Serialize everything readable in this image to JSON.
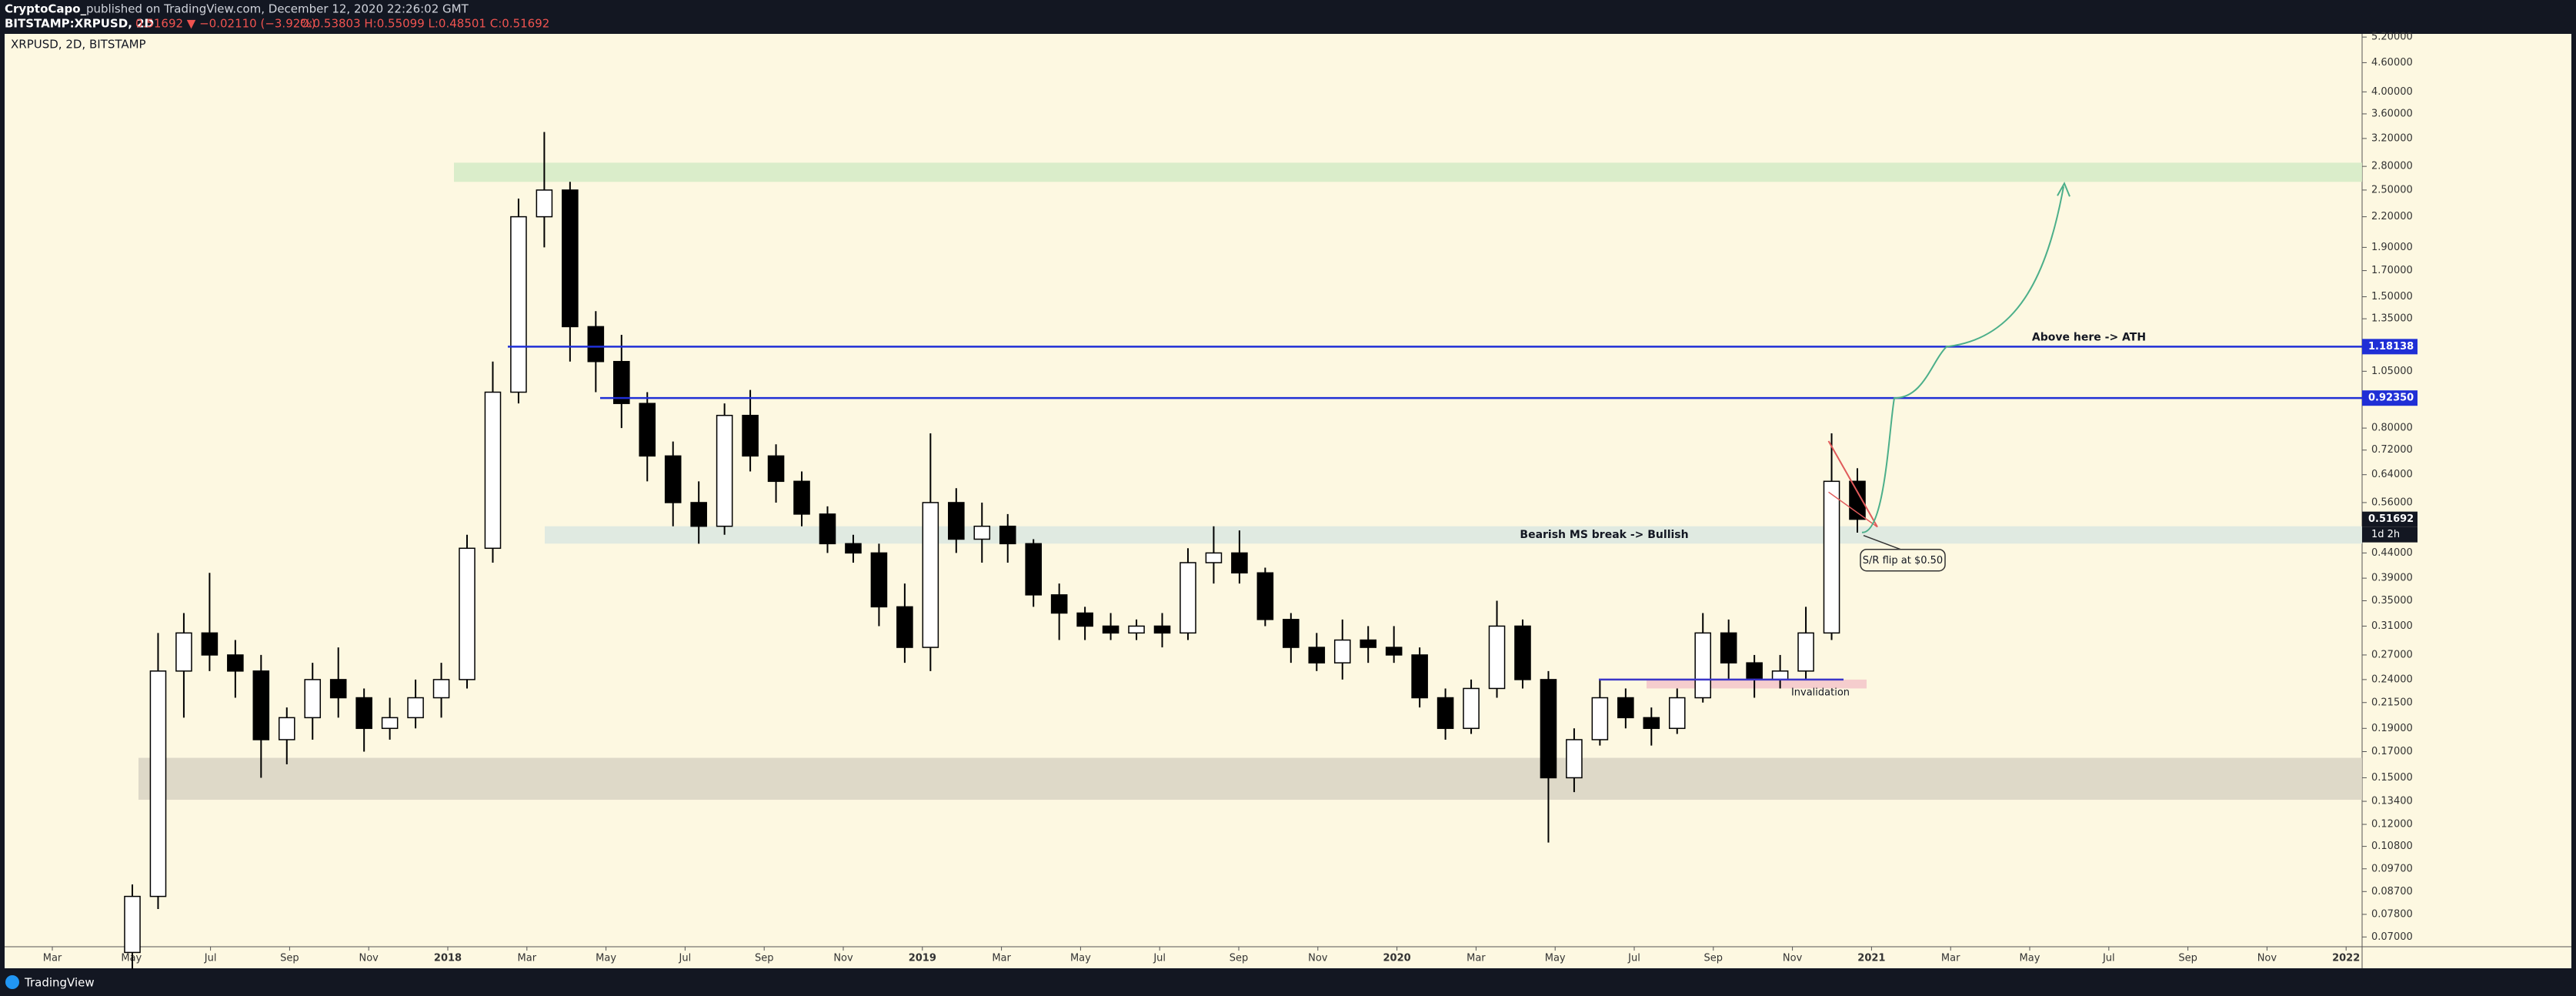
{
  "header": {
    "author": "CryptoCapo_",
    "published": "published on TradingView.com, December 12, 2020 22:26:02 GMT",
    "symbol": "BITSTAMP:XRPUSD, 2D",
    "quote": "0.51692 ▼ −0.02110 (−3.92%)",
    "ohlc": "O:0.53803 H:0.55099 L:0.48501 C:0.51692"
  },
  "footer": {
    "brand": "TradingView"
  },
  "chart_data": {
    "type": "candlestick",
    "title": "XRPUSD, 2D, BITSTAMP",
    "log_scale": true,
    "ylim": [
      0.0668,
      5.28
    ],
    "yticks": [
      {
        "value": 5.2,
        "label": "5.20000"
      },
      {
        "value": 4.6,
        "label": "4.60000"
      },
      {
        "value": 4,
        "label": "4.00000"
      },
      {
        "value": 3.6,
        "label": "3.60000"
      },
      {
        "value": 3.2,
        "label": "3.20000"
      },
      {
        "value": 2.8,
        "label": "2.80000"
      },
      {
        "value": 2.5,
        "label": "2.50000"
      },
      {
        "value": 2.2,
        "label": "2.20000"
      },
      {
        "value": 1.9,
        "label": "1.90000"
      },
      {
        "value": 1.7,
        "label": "1.70000"
      },
      {
        "value": 1.5,
        "label": "1.50000"
      },
      {
        "value": 1.35,
        "label": "1.35000"
      },
      {
        "value": 1.05,
        "label": "1.05000"
      },
      {
        "value": 0.8,
        "label": "0.80000"
      },
      {
        "value": 0.72,
        "label": "0.72000"
      },
      {
        "value": 0.64,
        "label": "0.64000"
      },
      {
        "value": 0.56,
        "label": "0.56000"
      },
      {
        "value": 0.44,
        "label": "0.44000"
      },
      {
        "value": 0.39,
        "label": "0.39000"
      },
      {
        "value": 0.35,
        "label": "0.35000"
      },
      {
        "value": 0.31,
        "label": "0.31000"
      },
      {
        "value": 0.27,
        "label": "0.27000"
      },
      {
        "value": 0.24,
        "label": "0.24000"
      },
      {
        "value": 0.215,
        "label": "0.21500"
      },
      {
        "value": 0.19,
        "label": "0.19000"
      },
      {
        "value": 0.17,
        "label": "0.17000"
      },
      {
        "value": 0.15,
        "label": "0.15000"
      },
      {
        "value": 0.134,
        "label": "0.13400"
      },
      {
        "value": 0.12,
        "label": "0.12000"
      },
      {
        "value": 0.108,
        "label": "0.10800"
      },
      {
        "value": 0.097,
        "label": "0.09700"
      },
      {
        "value": 0.087,
        "label": "0.08700"
      },
      {
        "value": 0.078,
        "label": "0.07800"
      },
      {
        "value": 0.07,
        "label": "0.07000"
      }
    ],
    "xticks": [
      "Mar",
      "May",
      "Jul",
      "Sep",
      "Nov",
      "2018",
      "Mar",
      "May",
      "Jul",
      "Sep",
      "Nov",
      "2019",
      "Mar",
      "May",
      "Jul",
      "Sep",
      "Nov",
      "2020",
      "Mar",
      "May",
      "Jul",
      "Sep",
      "Nov",
      "2021",
      "Mar",
      "May",
      "Jul",
      "Sep",
      "Nov",
      "2022"
    ],
    "open": [
      0.065,
      0.085,
      0.25,
      0.3,
      0.27,
      0.25,
      0.18,
      0.2,
      0.24,
      0.22,
      0.19,
      0.2,
      0.22,
      0.24,
      0.45,
      0.95,
      2.2,
      2.5,
      1.3,
      1.1,
      0.9,
      0.7,
      0.56,
      0.5,
      0.85,
      0.7,
      0.62,
      0.53,
      0.46,
      0.44,
      0.34,
      0.28,
      0.56,
      0.47,
      0.5,
      0.46,
      0.36,
      0.33,
      0.31,
      0.3,
      0.31,
      0.3,
      0.42,
      0.44,
      0.4,
      0.32,
      0.28,
      0.26,
      0.29,
      0.28,
      0.27,
      0.22,
      0.19,
      0.23,
      0.31,
      0.24,
      0.15,
      0.18,
      0.22,
      0.2,
      0.19,
      0.22,
      0.3,
      0.26,
      0.24,
      0.25,
      0.3,
      0.62
    ],
    "high": [
      0.09,
      0.3,
      0.33,
      0.4,
      0.29,
      0.27,
      0.21,
      0.26,
      0.28,
      0.23,
      0.22,
      0.24,
      0.26,
      0.48,
      1.1,
      2.4,
      3.3,
      2.6,
      1.4,
      1.25,
      0.95,
      0.75,
      0.62,
      0.9,
      0.96,
      0.74,
      0.65,
      0.55,
      0.48,
      0.46,
      0.38,
      0.78,
      0.6,
      0.56,
      0.53,
      0.47,
      0.38,
      0.34,
      0.33,
      0.32,
      0.33,
      0.45,
      0.5,
      0.49,
      0.41,
      0.33,
      0.3,
      0.32,
      0.31,
      0.31,
      0.28,
      0.23,
      0.24,
      0.35,
      0.32,
      0.25,
      0.19,
      0.24,
      0.23,
      0.21,
      0.23,
      0.33,
      0.32,
      0.27,
      0.27,
      0.34,
      0.78,
      0.66
    ],
    "low": [
      0.06,
      0.08,
      0.2,
      0.25,
      0.22,
      0.15,
      0.16,
      0.18,
      0.2,
      0.17,
      0.18,
      0.19,
      0.2,
      0.23,
      0.42,
      0.9,
      1.9,
      1.1,
      0.95,
      0.8,
      0.62,
      0.5,
      0.46,
      0.48,
      0.65,
      0.56,
      0.5,
      0.44,
      0.42,
      0.31,
      0.26,
      0.25,
      0.44,
      0.42,
      0.42,
      0.34,
      0.29,
      0.29,
      0.29,
      0.29,
      0.28,
      0.29,
      0.38,
      0.38,
      0.31,
      0.26,
      0.25,
      0.24,
      0.26,
      0.26,
      0.21,
      0.18,
      0.185,
      0.22,
      0.23,
      0.11,
      0.14,
      0.175,
      0.19,
      0.175,
      0.185,
      0.215,
      0.24,
      0.22,
      0.23,
      0.24,
      0.29,
      0.485
    ],
    "close": [
      0.085,
      0.25,
      0.3,
      0.27,
      0.25,
      0.18,
      0.2,
      0.24,
      0.22,
      0.19,
      0.2,
      0.22,
      0.24,
      0.45,
      0.95,
      2.2,
      2.5,
      1.3,
      1.1,
      0.9,
      0.7,
      0.56,
      0.5,
      0.85,
      0.7,
      0.62,
      0.53,
      0.46,
      0.44,
      0.34,
      0.28,
      0.56,
      0.47,
      0.5,
      0.46,
      0.36,
      0.33,
      0.31,
      0.3,
      0.31,
      0.3,
      0.42,
      0.44,
      0.4,
      0.32,
      0.28,
      0.26,
      0.29,
      0.28,
      0.27,
      0.22,
      0.19,
      0.23,
      0.31,
      0.24,
      0.15,
      0.18,
      0.22,
      0.2,
      0.19,
      0.22,
      0.3,
      0.26,
      0.24,
      0.25,
      0.3,
      0.62,
      0.517
    ],
    "zones": [
      {
        "from": 2.6,
        "to": 2.85,
        "color": "#d4ebc6"
      },
      {
        "from": 0.46,
        "to": 0.5,
        "color": "#dbe8e0",
        "label": "Bearish MS break -> Bullish"
      },
      {
        "from": 0.135,
        "to": 0.165,
        "color": "#d8d3c3"
      },
      {
        "from": 0.23,
        "to": 0.24,
        "color": "#f3c6c9"
      }
    ],
    "price_lines": [
      {
        "value": 1.18138,
        "label": "1.18138",
        "color": "#1f2fd6",
        "note": "Above here -> ATH"
      },
      {
        "value": 0.9235,
        "label": "0.92350",
        "color": "#1f2fd6"
      }
    ],
    "support_line": {
      "value": 0.24,
      "color": "#3b36c8",
      "label": "Invalidation"
    },
    "callout": "S/R flip at $0.50",
    "last_price": {
      "value": 0.51692,
      "label": "0.51692",
      "countdown": "1d 2h"
    }
  }
}
